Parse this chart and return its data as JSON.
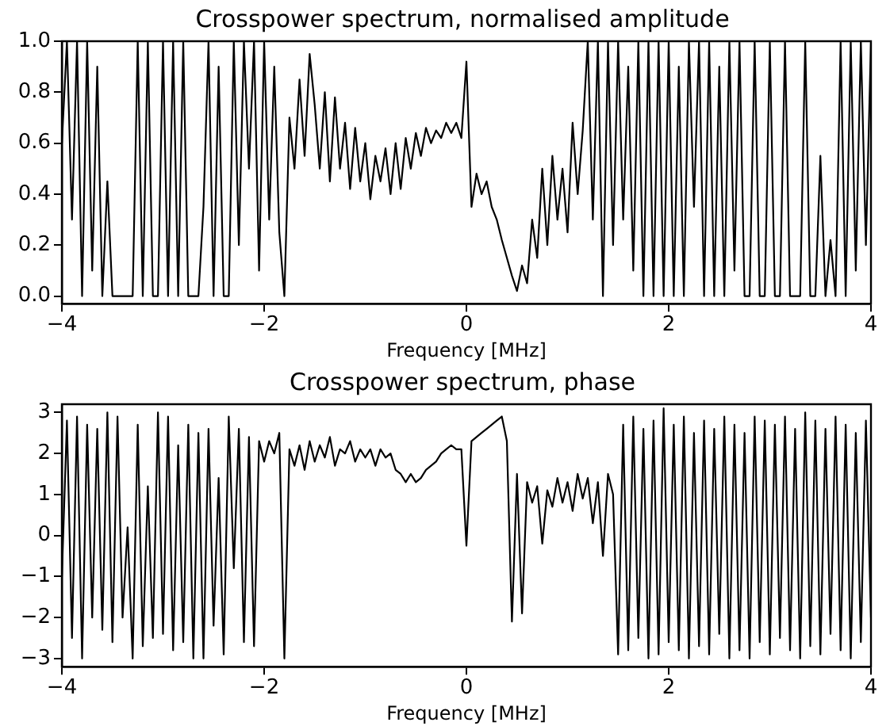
{
  "chart_data": [
    {
      "type": "line",
      "title": "Crosspower spectrum, normalised amplitude",
      "xlabel": "Frequency [MHz]",
      "xlim": [
        -4,
        4
      ],
      "xticks": [
        -4,
        -2,
        0,
        2,
        4
      ],
      "ylim": [
        -0.03,
        1.0
      ],
      "yticks": [
        {
          "value": 0,
          "label": "0.0"
        },
        {
          "value": 0.2,
          "label": "0.2"
        },
        {
          "value": 0.4,
          "label": "0.4"
        },
        {
          "value": 0.6,
          "label": "0.6"
        },
        {
          "value": 0.8,
          "label": "0.8"
        },
        {
          "value": 1.0,
          "label": "1.0"
        }
      ],
      "grid": false,
      "legend": false,
      "marker": "none",
      "line_style": "solid",
      "x": [
        -4,
        -3.95,
        -3.9,
        -3.85,
        -3.8,
        -3.75,
        -3.7,
        -3.65,
        -3.6,
        -3.55,
        -3.5,
        -3.45,
        -3.4,
        -3.35,
        -3.3,
        -3.25,
        -3.2,
        -3.15,
        -3.1,
        -3.05,
        -3,
        -2.95,
        -2.9,
        -2.85,
        -2.8,
        -2.75,
        -2.7,
        -2.65,
        -2.6,
        -2.55,
        -2.5,
        -2.45,
        -2.4,
        -2.35,
        -2.3,
        -2.25,
        -2.2,
        -2.15,
        -2.1,
        -2.05,
        -2,
        -1.95,
        -1.9,
        -1.85,
        -1.8,
        -1.75,
        -1.7,
        -1.65,
        -1.6,
        -1.55,
        -1.5,
        -1.45,
        -1.4,
        -1.35,
        -1.3,
        -1.25,
        -1.2,
        -1.15,
        -1.1,
        -1.05,
        -1,
        -0.95,
        -0.9,
        -0.85,
        -0.8,
        -0.75,
        -0.7,
        -0.65,
        -0.6,
        -0.55,
        -0.5,
        -0.45,
        -0.4,
        -0.35,
        -0.3,
        -0.25,
        -0.2,
        -0.15,
        -0.1,
        -0.05,
        0,
        0.05,
        0.1,
        0.15,
        0.2,
        0.25,
        0.3,
        0.35,
        0.4,
        0.45,
        0.5,
        0.55,
        0.6,
        0.65,
        0.7,
        0.75,
        0.8,
        0.85,
        0.9,
        0.95,
        1,
        1.05,
        1.1,
        1.15,
        1.2,
        1.25,
        1.3,
        1.35,
        1.4,
        1.45,
        1.5,
        1.55,
        1.6,
        1.65,
        1.7,
        1.75,
        1.8,
        1.85,
        1.9,
        1.95,
        2,
        2.05,
        2.1,
        2.15,
        2.2,
        2.25,
        2.3,
        2.35,
        2.4,
        2.45,
        2.5,
        2.55,
        2.6,
        2.65,
        2.7,
        2.75,
        2.8,
        2.85,
        2.9,
        2.95,
        3,
        3.05,
        3.1,
        3.15,
        3.2,
        3.25,
        3.3,
        3.35,
        3.4,
        3.45,
        3.5,
        3.55,
        3.6,
        3.65,
        3.7,
        3.75,
        3.8,
        3.85,
        3.9,
        3.95,
        4
      ],
      "series": [
        {
          "color": "#000000",
          "values": [
            0.6,
            1,
            0.3,
            1,
            0,
            1,
            0.1,
            0.9,
            0,
            0.45,
            0,
            0,
            0,
            0,
            0,
            1,
            0,
            1,
            0,
            0,
            1,
            0,
            1,
            0,
            1,
            0,
            0,
            0,
            0.35,
            1,
            0,
            0.9,
            0,
            0,
            1,
            0.2,
            1,
            0.5,
            1,
            0.1,
            1,
            0.3,
            0.9,
            0.25,
            0,
            0.7,
            0.5,
            0.85,
            0.55,
            0.95,
            0.75,
            0.5,
            0.8,
            0.45,
            0.78,
            0.5,
            0.68,
            0.42,
            0.66,
            0.45,
            0.6,
            0.38,
            0.55,
            0.45,
            0.58,
            0.4,
            0.6,
            0.42,
            0.62,
            0.5,
            0.64,
            0.55,
            0.66,
            0.6,
            0.65,
            0.62,
            0.68,
            0.64,
            0.68,
            0.62,
            0.92,
            0.35,
            0.48,
            0.4,
            0.45,
            0.35,
            0.3,
            0.22,
            0.15,
            0.08,
            0.02,
            0.12,
            0.05,
            0.3,
            0.15,
            0.5,
            0.2,
            0.55,
            0.3,
            0.5,
            0.25,
            0.68,
            0.4,
            0.65,
            1,
            0.3,
            1,
            0,
            1,
            0.2,
            1,
            0.3,
            0.9,
            0.1,
            1,
            0,
            1,
            0,
            1,
            0,
            1,
            0,
            0.9,
            0,
            1,
            0.35,
            1,
            0,
            1,
            0,
            0.9,
            0,
            1,
            0.1,
            1,
            0,
            0,
            1,
            0,
            0,
            1,
            0,
            0,
            1,
            0,
            0,
            0,
            1,
            0,
            0,
            0.55,
            0,
            0.22,
            0,
            1,
            0,
            1,
            0.1,
            1,
            0.2,
            1
          ]
        }
      ]
    },
    {
      "type": "line",
      "title": "Crosspower spectrum, phase",
      "xlabel": "Frequency [MHz]",
      "xlim": [
        -4,
        4
      ],
      "xticks": [
        -4,
        -2,
        0,
        2,
        4
      ],
      "ylim": [
        -3.2,
        3.2
      ],
      "yticks": [
        -3,
        -2,
        -1,
        0,
        1,
        2,
        3
      ],
      "grid": false,
      "legend": false,
      "marker": "none",
      "line_style": "solid",
      "x": [
        -4,
        -3.95,
        -3.9,
        -3.85,
        -3.8,
        -3.75,
        -3.7,
        -3.65,
        -3.6,
        -3.55,
        -3.5,
        -3.45,
        -3.4,
        -3.35,
        -3.3,
        -3.25,
        -3.2,
        -3.15,
        -3.1,
        -3.05,
        -3,
        -2.95,
        -2.9,
        -2.85,
        -2.8,
        -2.75,
        -2.7,
        -2.65,
        -2.6,
        -2.55,
        -2.5,
        -2.45,
        -2.4,
        -2.35,
        -2.3,
        -2.25,
        -2.2,
        -2.15,
        -2.1,
        -2.05,
        -2,
        -1.95,
        -1.9,
        -1.85,
        -1.8,
        -1.75,
        -1.7,
        -1.65,
        -1.6,
        -1.55,
        -1.5,
        -1.45,
        -1.4,
        -1.35,
        -1.3,
        -1.25,
        -1.2,
        -1.15,
        -1.1,
        -1.05,
        -1,
        -0.95,
        -0.9,
        -0.85,
        -0.8,
        -0.75,
        -0.7,
        -0.65,
        -0.6,
        -0.55,
        -0.5,
        -0.45,
        -0.4,
        -0.35,
        -0.3,
        -0.25,
        -0.2,
        -0.15,
        -0.1,
        -0.05,
        0,
        0.05,
        0.1,
        0.15,
        0.2,
        0.25,
        0.3,
        0.35,
        0.4,
        0.45,
        0.5,
        0.55,
        0.6,
        0.65,
        0.7,
        0.75,
        0.8,
        0.85,
        0.9,
        0.95,
        1,
        1.05,
        1.1,
        1.15,
        1.2,
        1.25,
        1.3,
        1.35,
        1.4,
        1.45,
        1.5,
        1.55,
        1.6,
        1.65,
        1.7,
        1.75,
        1.8,
        1.85,
        1.9,
        1.95,
        2,
        2.05,
        2.1,
        2.15,
        2.2,
        2.25,
        2.3,
        2.35,
        2.4,
        2.45,
        2.5,
        2.55,
        2.6,
        2.65,
        2.7,
        2.75,
        2.8,
        2.85,
        2.9,
        2.95,
        3,
        3.05,
        3.1,
        3.15,
        3.2,
        3.25,
        3.3,
        3.35,
        3.4,
        3.45,
        3.5,
        3.55,
        3.6,
        3.65,
        3.7,
        3.75,
        3.8,
        3.85,
        3.9,
        3.95,
        4
      ],
      "series": [
        {
          "color": "#000000",
          "values": [
            -1,
            2.8,
            -2.5,
            2.9,
            -3,
            2.7,
            -2,
            2.6,
            -2.3,
            3,
            -2.6,
            2.9,
            -2,
            0.2,
            -3,
            2.7,
            -2.7,
            1.2,
            -2.5,
            3,
            -2.4,
            2.9,
            -2.8,
            2.2,
            -2.6,
            2.7,
            -3,
            2.5,
            -3,
            2.6,
            -2.2,
            1.4,
            -2.9,
            2.9,
            -0.8,
            2.6,
            -2.6,
            2.4,
            -2.7,
            2.3,
            1.8,
            2.3,
            2,
            2.5,
            -3,
            2.1,
            1.7,
            2.2,
            1.6,
            2.3,
            1.8,
            2.2,
            1.9,
            2.4,
            1.7,
            2.1,
            2,
            2.3,
            1.8,
            2.1,
            1.9,
            2.1,
            1.7,
            2.1,
            1.9,
            2,
            1.6,
            1.5,
            1.3,
            1.5,
            1.3,
            1.4,
            1.6,
            1.7,
            1.8,
            2,
            2.1,
            2.2,
            2.1,
            2.1,
            -0.25,
            2.3,
            2.4,
            2.5,
            2.6,
            2.7,
            2.8,
            2.9,
            2.3,
            -2.1,
            1.5,
            -1.9,
            1.3,
            0.8,
            1.2,
            -0.2,
            1.1,
            0.7,
            1.4,
            0.8,
            1.3,
            0.6,
            1.5,
            0.9,
            1.4,
            0.3,
            1.3,
            -0.5,
            1.5,
            1,
            -2.9,
            2.7,
            -2.8,
            2.9,
            -2.5,
            2.6,
            -3,
            2.8,
            -2.9,
            3.1,
            -2.6,
            2.7,
            -2.8,
            2.9,
            -3,
            2.5,
            -2.7,
            2.8,
            -2.9,
            2.6,
            -2.4,
            2.9,
            -3,
            2.7,
            -2.8,
            2.5,
            -3,
            2.9,
            -2.6,
            2.8,
            -2.9,
            2.7,
            -2.5,
            2.9,
            -2.8,
            2.6,
            -3,
            3,
            -2.7,
            2.8,
            -2.9,
            2.6,
            -2.4,
            2.9,
            -2.8,
            2.7,
            -3,
            2.5,
            -2.6,
            2.8,
            -2
          ]
        }
      ]
    }
  ]
}
